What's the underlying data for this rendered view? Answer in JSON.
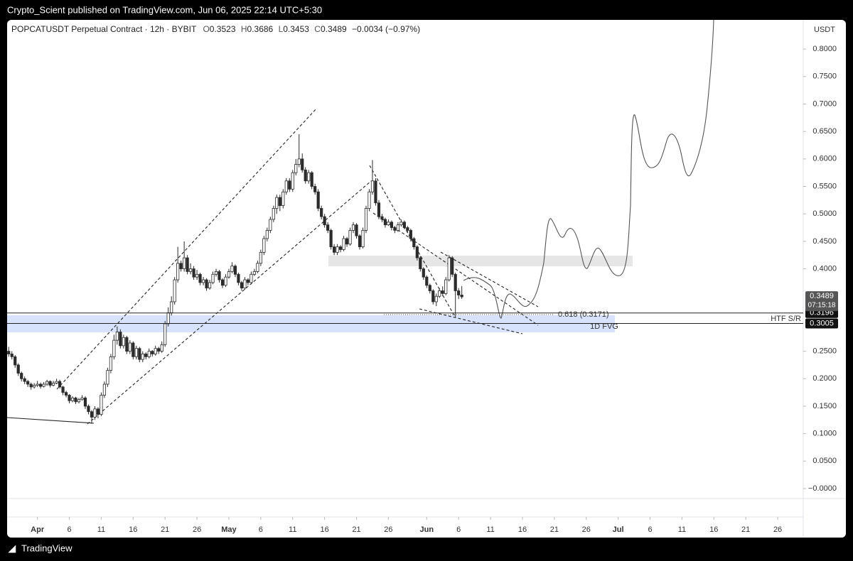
{
  "header": {
    "publisher": "Crypto_Scient published on TradingView.com, Jun 06, 2025 22:14 UTC+5:30"
  },
  "footer": {
    "brand": "TradingView"
  },
  "chart_data": {
    "type": "candlestick",
    "title": "POPCATUSDT Perpetual Contract · 12h · BYBIT",
    "legend": {
      "o_label": "O",
      "o": 0.3523,
      "h_label": "H",
      "h": 0.3686,
      "l_label": "L",
      "l": 0.3453,
      "c_label": "C",
      "c": 0.3489,
      "change": "−0.0034 (−0.97%)"
    },
    "currency": "USDT",
    "colors": {
      "up": "#ffffff",
      "down": "#2b2b2b",
      "wick": "#2b2b2b"
    },
    "ohlc": [
      [
        0.25,
        0.258,
        0.24,
        0.245
      ],
      [
        0.245,
        0.25,
        0.235,
        0.24
      ],
      [
        0.24,
        0.243,
        0.22,
        0.225
      ],
      [
        0.225,
        0.228,
        0.205,
        0.21
      ],
      [
        0.21,
        0.213,
        0.195,
        0.2
      ],
      [
        0.2,
        0.204,
        0.19,
        0.195
      ],
      [
        0.195,
        0.198,
        0.185,
        0.19
      ],
      [
        0.19,
        0.193,
        0.18,
        0.185
      ],
      [
        0.185,
        0.192,
        0.182,
        0.188
      ],
      [
        0.188,
        0.196,
        0.185,
        0.19
      ],
      [
        0.19,
        0.193,
        0.182,
        0.186
      ],
      [
        0.186,
        0.194,
        0.184,
        0.19
      ],
      [
        0.19,
        0.198,
        0.187,
        0.195
      ],
      [
        0.195,
        0.197,
        0.184,
        0.188
      ],
      [
        0.188,
        0.196,
        0.186,
        0.192
      ],
      [
        0.192,
        0.2,
        0.19,
        0.195
      ],
      [
        0.195,
        0.198,
        0.182,
        0.185
      ],
      [
        0.185,
        0.187,
        0.17,
        0.175
      ],
      [
        0.175,
        0.178,
        0.166,
        0.17
      ],
      [
        0.17,
        0.172,
        0.155,
        0.16
      ],
      [
        0.16,
        0.168,
        0.157,
        0.165
      ],
      [
        0.165,
        0.167,
        0.154,
        0.158
      ],
      [
        0.158,
        0.165,
        0.155,
        0.162
      ],
      [
        0.162,
        0.17,
        0.16,
        0.165
      ],
      [
        0.165,
        0.168,
        0.145,
        0.15
      ],
      [
        0.15,
        0.153,
        0.135,
        0.14
      ],
      [
        0.14,
        0.143,
        0.118,
        0.13
      ],
      [
        0.13,
        0.15,
        0.125,
        0.145
      ],
      [
        0.145,
        0.148,
        0.128,
        0.135
      ],
      [
        0.135,
        0.175,
        0.132,
        0.17
      ],
      [
        0.17,
        0.195,
        0.165,
        0.19
      ],
      [
        0.19,
        0.22,
        0.185,
        0.215
      ],
      [
        0.215,
        0.245,
        0.21,
        0.24
      ],
      [
        0.24,
        0.28,
        0.235,
        0.27
      ],
      [
        0.27,
        0.295,
        0.262,
        0.285
      ],
      [
        0.285,
        0.29,
        0.255,
        0.26
      ],
      [
        0.26,
        0.28,
        0.255,
        0.275
      ],
      [
        0.275,
        0.278,
        0.245,
        0.25
      ],
      [
        0.25,
        0.27,
        0.245,
        0.265
      ],
      [
        0.265,
        0.268,
        0.235,
        0.24
      ],
      [
        0.24,
        0.26,
        0.235,
        0.255
      ],
      [
        0.255,
        0.258,
        0.23,
        0.235
      ],
      [
        0.235,
        0.25,
        0.23,
        0.245
      ],
      [
        0.245,
        0.248,
        0.235,
        0.24
      ],
      [
        0.24,
        0.255,
        0.237,
        0.25
      ],
      [
        0.25,
        0.252,
        0.24,
        0.245
      ],
      [
        0.245,
        0.26,
        0.242,
        0.255
      ],
      [
        0.255,
        0.258,
        0.245,
        0.25
      ],
      [
        0.25,
        0.268,
        0.247,
        0.262
      ],
      [
        0.262,
        0.305,
        0.258,
        0.3
      ],
      [
        0.3,
        0.33,
        0.295,
        0.32
      ],
      [
        0.32,
        0.35,
        0.315,
        0.34
      ],
      [
        0.34,
        0.385,
        0.335,
        0.38
      ],
      [
        0.38,
        0.44,
        0.375,
        0.41
      ],
      [
        0.41,
        0.415,
        0.395,
        0.4
      ],
      [
        0.4,
        0.45,
        0.395,
        0.42
      ],
      [
        0.42,
        0.425,
        0.39,
        0.395
      ],
      [
        0.395,
        0.41,
        0.39,
        0.4
      ],
      [
        0.4,
        0.405,
        0.38,
        0.385
      ],
      [
        0.385,
        0.398,
        0.38,
        0.39
      ],
      [
        0.39,
        0.393,
        0.37,
        0.375
      ],
      [
        0.375,
        0.385,
        0.37,
        0.38
      ],
      [
        0.38,
        0.383,
        0.36,
        0.365
      ],
      [
        0.365,
        0.38,
        0.362,
        0.375
      ],
      [
        0.375,
        0.395,
        0.372,
        0.39
      ],
      [
        0.39,
        0.4,
        0.386,
        0.395
      ],
      [
        0.395,
        0.398,
        0.375,
        0.38
      ],
      [
        0.38,
        0.383,
        0.365,
        0.37
      ],
      [
        0.37,
        0.39,
        0.367,
        0.385
      ],
      [
        0.385,
        0.4,
        0.382,
        0.395
      ],
      [
        0.395,
        0.412,
        0.392,
        0.405
      ],
      [
        0.405,
        0.408,
        0.385,
        0.39
      ],
      [
        0.39,
        0.393,
        0.37,
        0.375
      ],
      [
        0.375,
        0.378,
        0.36,
        0.365
      ],
      [
        0.365,
        0.385,
        0.362,
        0.38
      ],
      [
        0.38,
        0.383,
        0.37,
        0.375
      ],
      [
        0.375,
        0.395,
        0.372,
        0.39
      ],
      [
        0.39,
        0.4,
        0.387,
        0.395
      ],
      [
        0.395,
        0.415,
        0.392,
        0.41
      ],
      [
        0.41,
        0.435,
        0.405,
        0.43
      ],
      [
        0.43,
        0.46,
        0.425,
        0.455
      ],
      [
        0.455,
        0.475,
        0.45,
        0.47
      ],
      [
        0.47,
        0.495,
        0.465,
        0.49
      ],
      [
        0.49,
        0.515,
        0.485,
        0.51
      ],
      [
        0.51,
        0.535,
        0.5,
        0.53
      ],
      [
        0.53,
        0.535,
        0.505,
        0.515
      ],
      [
        0.515,
        0.545,
        0.51,
        0.54
      ],
      [
        0.54,
        0.565,
        0.535,
        0.56
      ],
      [
        0.56,
        0.565,
        0.54,
        0.545
      ],
      [
        0.545,
        0.58,
        0.54,
        0.575
      ],
      [
        0.575,
        0.6,
        0.57,
        0.59
      ],
      [
        0.59,
        0.645,
        0.585,
        0.6
      ],
      [
        0.6,
        0.61,
        0.575,
        0.58
      ],
      [
        0.58,
        0.585,
        0.555,
        0.56
      ],
      [
        0.56,
        0.58,
        0.555,
        0.575
      ],
      [
        0.575,
        0.578,
        0.545,
        0.55
      ],
      [
        0.55,
        0.555,
        0.535,
        0.54
      ],
      [
        0.54,
        0.545,
        0.505,
        0.51
      ],
      [
        0.51,
        0.515,
        0.49,
        0.495
      ],
      [
        0.495,
        0.5,
        0.475,
        0.48
      ],
      [
        0.48,
        0.485,
        0.465,
        0.47
      ],
      [
        0.47,
        0.473,
        0.435,
        0.44
      ],
      [
        0.44,
        0.445,
        0.425,
        0.43
      ],
      [
        0.43,
        0.445,
        0.425,
        0.44
      ],
      [
        0.44,
        0.443,
        0.43,
        0.435
      ],
      [
        0.435,
        0.46,
        0.432,
        0.455
      ],
      [
        0.455,
        0.458,
        0.44,
        0.445
      ],
      [
        0.445,
        0.475,
        0.442,
        0.47
      ],
      [
        0.47,
        0.485,
        0.465,
        0.48
      ],
      [
        0.48,
        0.483,
        0.455,
        0.46
      ],
      [
        0.46,
        0.463,
        0.435,
        0.44
      ],
      [
        0.44,
        0.475,
        0.437,
        0.47
      ],
      [
        0.47,
        0.515,
        0.465,
        0.51
      ],
      [
        0.51,
        0.545,
        0.505,
        0.54
      ],
      [
        0.54,
        0.598,
        0.535,
        0.56
      ],
      [
        0.56,
        0.565,
        0.515,
        0.52
      ],
      [
        0.52,
        0.525,
        0.49,
        0.495
      ],
      [
        0.495,
        0.5,
        0.485,
        0.49
      ],
      [
        0.49,
        0.493,
        0.475,
        0.48
      ],
      [
        0.48,
        0.49,
        0.478,
        0.485
      ],
      [
        0.485,
        0.488,
        0.47,
        0.475
      ],
      [
        0.475,
        0.478,
        0.465,
        0.47
      ],
      [
        0.47,
        0.485,
        0.467,
        0.48
      ],
      [
        0.48,
        0.49,
        0.477,
        0.485
      ],
      [
        0.485,
        0.488,
        0.472,
        0.475
      ],
      [
        0.475,
        0.478,
        0.465,
        0.47
      ],
      [
        0.47,
        0.473,
        0.45,
        0.455
      ],
      [
        0.455,
        0.458,
        0.435,
        0.44
      ],
      [
        0.44,
        0.443,
        0.415,
        0.42
      ],
      [
        0.42,
        0.423,
        0.395,
        0.4
      ],
      [
        0.4,
        0.403,
        0.38,
        0.385
      ],
      [
        0.385,
        0.388,
        0.365,
        0.37
      ],
      [
        0.37,
        0.373,
        0.355,
        0.36
      ],
      [
        0.36,
        0.363,
        0.335,
        0.34
      ],
      [
        0.34,
        0.355,
        0.332,
        0.35
      ],
      [
        0.35,
        0.365,
        0.347,
        0.36
      ],
      [
        0.36,
        0.368,
        0.35,
        0.355
      ],
      [
        0.355,
        0.385,
        0.352,
        0.38
      ],
      [
        0.38,
        0.425,
        0.377,
        0.42
      ],
      [
        0.42,
        0.423,
        0.385,
        0.39
      ],
      [
        0.39,
        0.393,
        0.312,
        0.36
      ],
      [
        0.36,
        0.365,
        0.345,
        0.3523
      ],
      [
        0.3523,
        0.3686,
        0.3453,
        0.3489
      ]
    ],
    "xlim": [
      -0.5,
      247
    ],
    "xticks": [
      {
        "value": 9,
        "label": "Apr"
      },
      {
        "value": 19,
        "label": "6"
      },
      {
        "value": 29,
        "label": "11"
      },
      {
        "value": 39,
        "label": "16"
      },
      {
        "value": 49,
        "label": "21"
      },
      {
        "value": 59,
        "label": "26"
      },
      {
        "value": 69,
        "label": "May"
      },
      {
        "value": 79,
        "label": "6"
      },
      {
        "value": 89,
        "label": "11"
      },
      {
        "value": 99,
        "label": "16"
      },
      {
        "value": 109,
        "label": "21"
      },
      {
        "value": 119,
        "label": "26"
      },
      {
        "value": 131,
        "label": "Jun"
      },
      {
        "value": 141,
        "label": "6"
      },
      {
        "value": 151,
        "label": "11"
      },
      {
        "value": 161,
        "label": "16"
      },
      {
        "value": 171,
        "label": "21"
      },
      {
        "value": 181,
        "label": "26"
      },
      {
        "value": 191,
        "label": "Jul"
      },
      {
        "value": 201,
        "label": "6"
      },
      {
        "value": 211,
        "label": "11"
      },
      {
        "value": 221,
        "label": "16"
      },
      {
        "value": 231,
        "label": "21"
      },
      {
        "value": 241,
        "label": "26"
      }
    ],
    "ylim": [
      -0.0155,
      0.857
    ],
    "yticks": [
      {
        "value": 0.8,
        "label": "0.8000"
      },
      {
        "value": 0.75,
        "label": "0.7500"
      },
      {
        "value": 0.7,
        "label": "0.7000"
      },
      {
        "value": 0.65,
        "label": "0.6500"
      },
      {
        "value": 0.6,
        "label": "0.6000"
      },
      {
        "value": 0.55,
        "label": "0.5500"
      },
      {
        "value": 0.5,
        "label": "0.5000"
      },
      {
        "value": 0.45,
        "label": "0.4500"
      },
      {
        "value": 0.4,
        "label": "0.4000"
      },
      {
        "value": 0.25,
        "label": "0.2500"
      },
      {
        "value": 0.2,
        "label": "0.2000"
      },
      {
        "value": 0.15,
        "label": "0.1500"
      },
      {
        "value": 0.1,
        "label": "0.1000"
      },
      {
        "value": 0.05,
        "label": "0.0500"
      },
      {
        "value": 0,
        "label": "−0.0000"
      }
    ],
    "grid": false,
    "last_price": 0.3489,
    "countdown": "07:15:18",
    "levels": [
      0.3196,
      0.3005
    ],
    "annotations": {
      "fib": "0.618 (0.3171)",
      "sr": "HTF S/R",
      "fvg": "1D FVG"
    }
  }
}
